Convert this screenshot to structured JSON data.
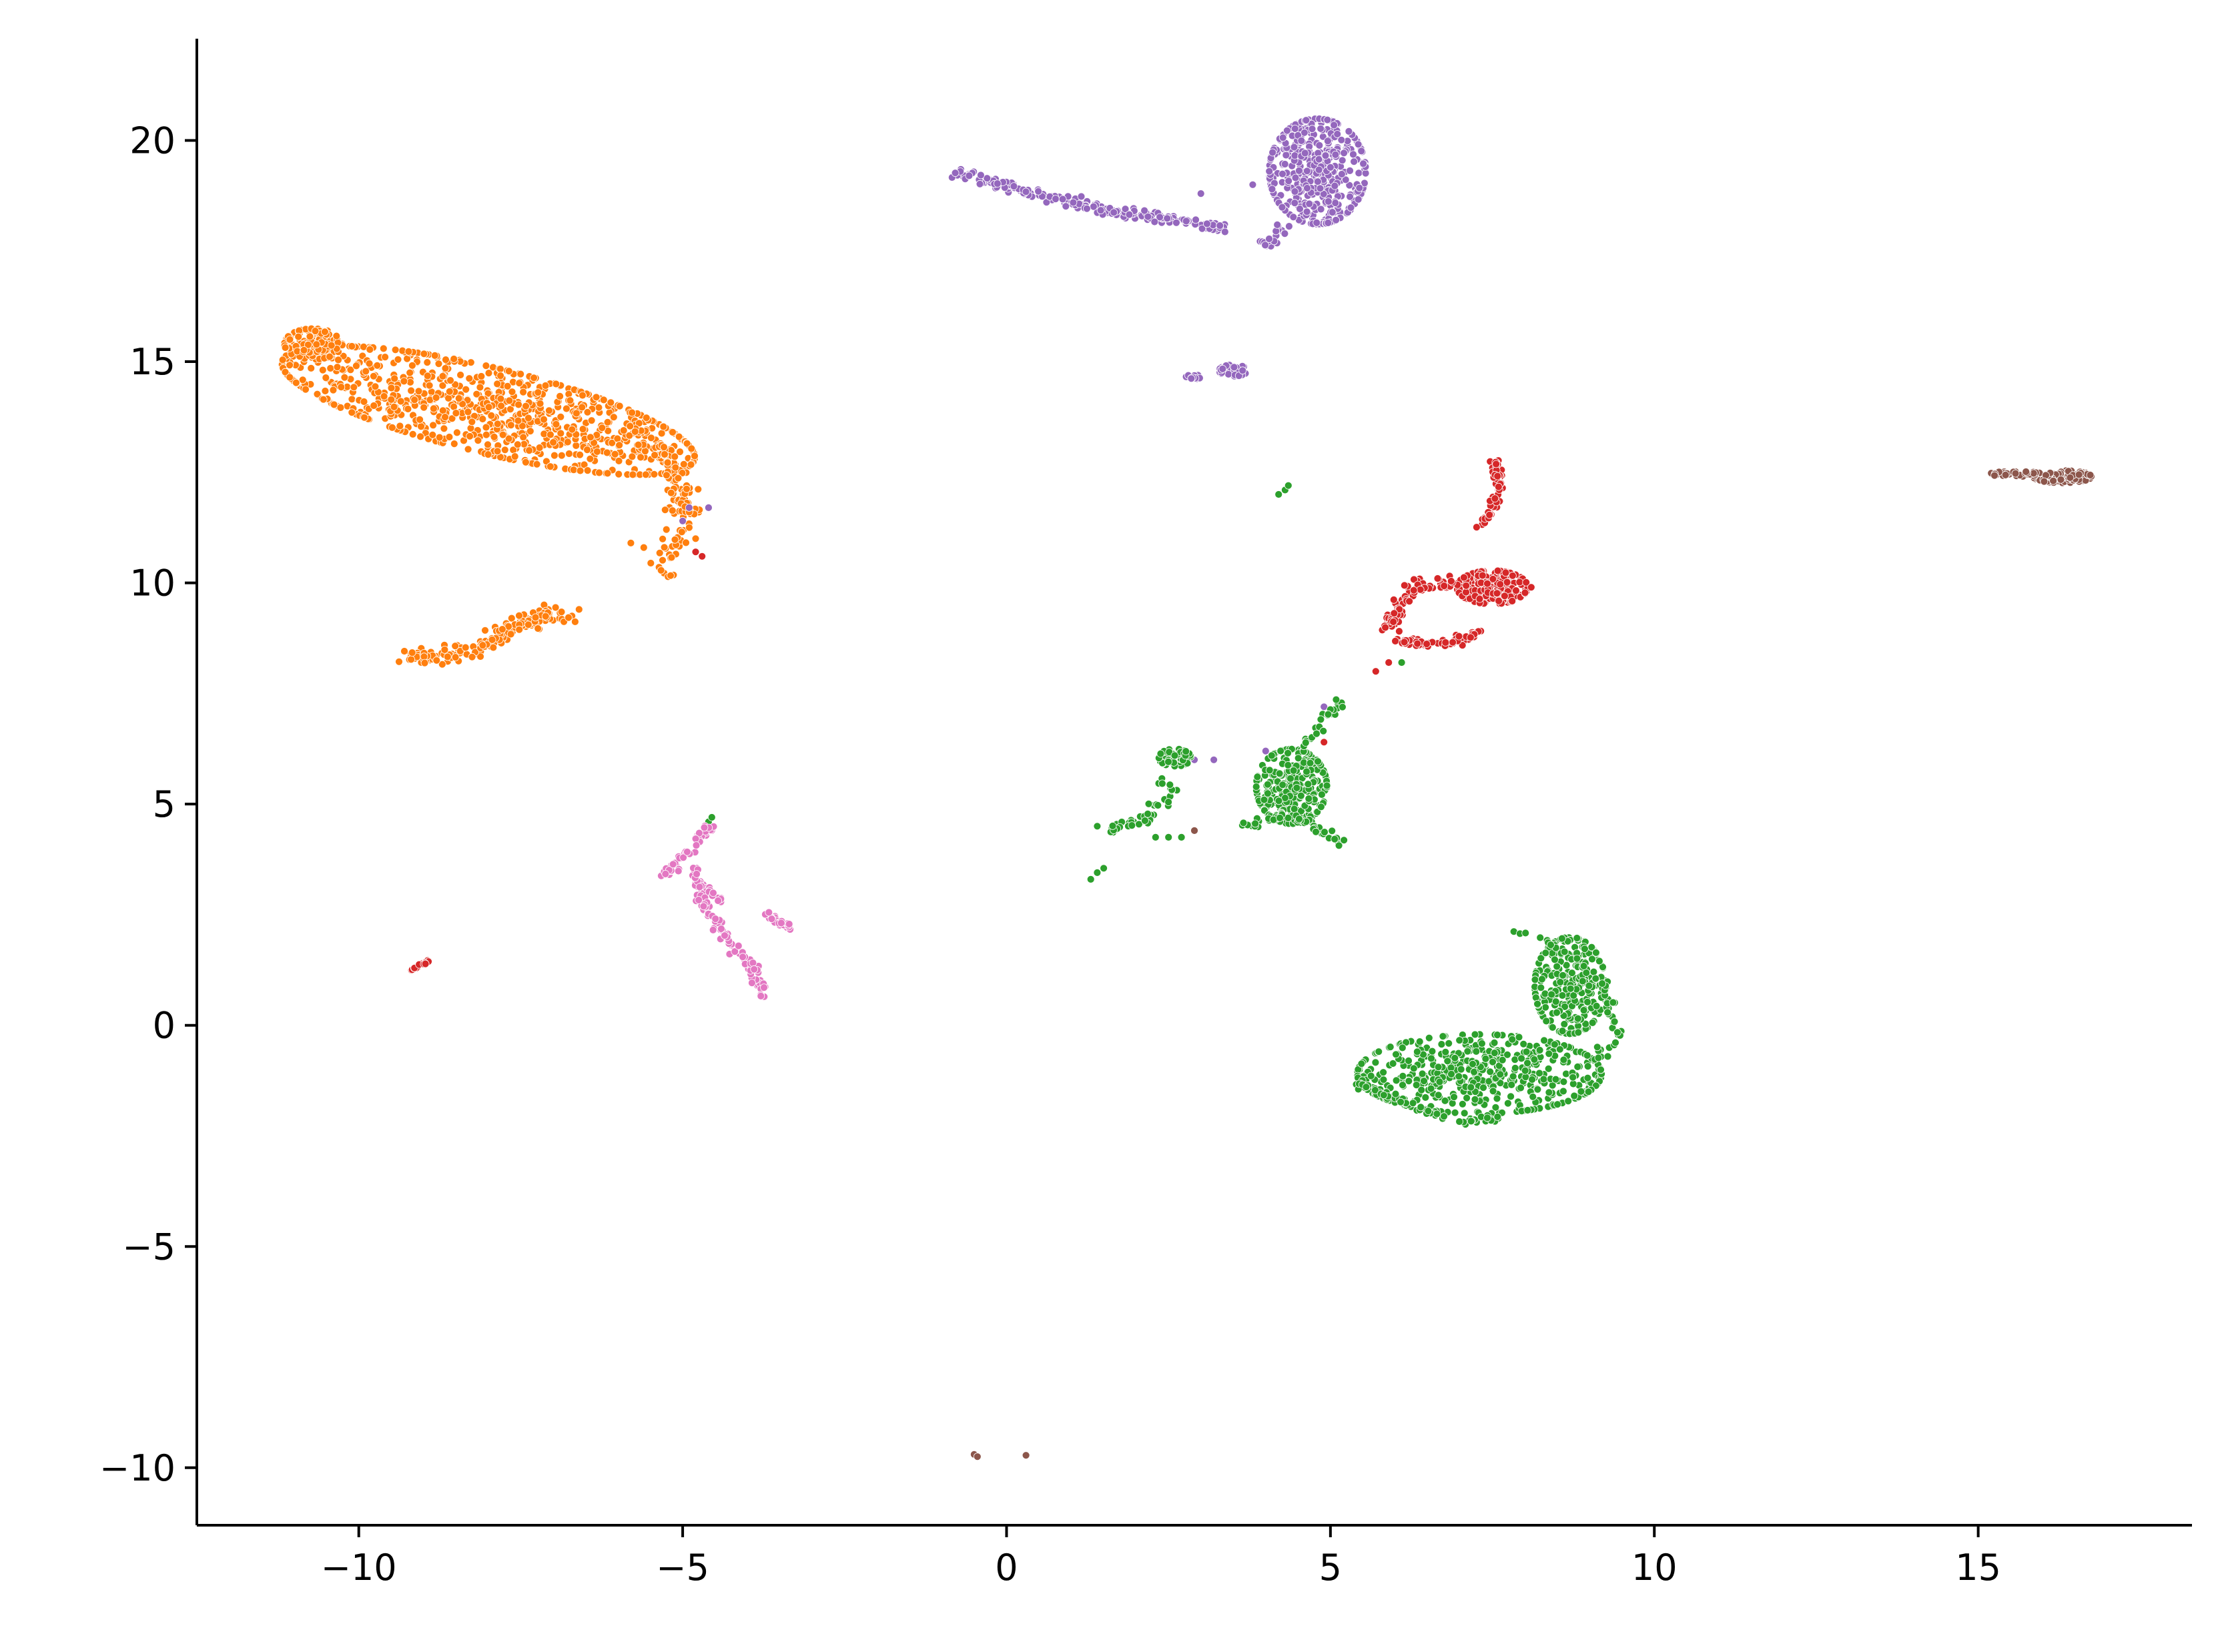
{
  "chart_data": {
    "type": "scatter",
    "title": "",
    "xlabel": "",
    "ylabel": "",
    "xlim": [
      -12.5,
      18.3
    ],
    "ylim": [
      -11.3,
      22.3
    ],
    "grid": false,
    "legend": "none",
    "xticks": [
      -10,
      -5,
      0,
      5,
      10,
      15
    ],
    "yticks": [
      -10,
      -5,
      0,
      5,
      10,
      15,
      20
    ],
    "xtick_labels": [
      "−10",
      "−5",
      "0",
      "5",
      "10",
      "15"
    ],
    "ytick_labels": [
      "−10",
      "−5",
      "0",
      "5",
      "10",
      "15",
      "20"
    ],
    "series": [
      {
        "color": "#ff7f0e",
        "clusters": [
          {
            "shape": "blob",
            "cx": -8.0,
            "cy": 13.9,
            "rx": 3.4,
            "ry": 0.95,
            "angle": -20,
            "n": 900
          },
          {
            "shape": "blob",
            "cx": -10.7,
            "cy": 15.4,
            "rx": 0.45,
            "ry": 0.35,
            "angle": 0,
            "n": 140
          },
          {
            "shape": "path",
            "points": [
              [
                -5.9,
                13.6
              ],
              [
                -5.3,
                12.9
              ],
              [
                -5.0,
                12.2
              ],
              [
                -5.0,
                11.3
              ],
              [
                -5.3,
                10.3
              ]
            ],
            "spread": 0.25,
            "n": 130
          },
          {
            "shape": "path",
            "points": [
              [
                -9.3,
                8.3
              ],
              [
                -8.4,
                8.4
              ],
              [
                -7.7,
                8.9
              ],
              [
                -7.2,
                9.3
              ],
              [
                -6.8,
                9.1
              ]
            ],
            "spread": 0.18,
            "n": 180
          },
          {
            "shape": "points",
            "points": [
              [
                -5.8,
                10.9
              ],
              [
                -5.6,
                10.8
              ],
              [
                -4.8,
                11.0
              ],
              [
                -6.6,
                9.4
              ],
              [
                -4.9,
                11.6
              ]
            ]
          }
        ]
      },
      {
        "color": "#9467bd",
        "clusters": [
          {
            "shape": "blob",
            "cx": 4.8,
            "cy": 19.3,
            "rx": 0.75,
            "ry": 1.2,
            "angle": 0,
            "n": 450
          },
          {
            "shape": "path",
            "points": [
              [
                -0.8,
                19.3
              ],
              [
                0.4,
                18.8
              ],
              [
                1.6,
                18.4
              ],
              [
                2.8,
                18.2
              ],
              [
                3.3,
                18.0
              ]
            ],
            "spread": 0.12,
            "n": 190
          },
          {
            "shape": "path",
            "points": [
              [
                3.9,
                17.6
              ],
              [
                4.3,
                18.1
              ]
            ],
            "spread": 0.15,
            "n": 20
          },
          {
            "shape": "blob",
            "cx": 3.5,
            "cy": 14.8,
            "rx": 0.22,
            "ry": 0.13,
            "angle": 0,
            "n": 35
          },
          {
            "shape": "blob",
            "cx": 2.9,
            "cy": 14.65,
            "rx": 0.13,
            "ry": 0.06,
            "angle": 0,
            "n": 12
          },
          {
            "shape": "points",
            "points": [
              [
                -4.6,
                11.7
              ],
              [
                -4.9,
                11.7
              ],
              [
                -5.0,
                11.4
              ],
              [
                2.9,
                6.0
              ],
              [
                3.2,
                6.0
              ],
              [
                4.9,
                7.2
              ],
              [
                4.0,
                6.2
              ],
              [
                3.8,
                19.0
              ],
              [
                3.0,
                18.8
              ]
            ]
          }
        ]
      },
      {
        "color": "#d62728",
        "clusters": [
          {
            "shape": "blob",
            "cx": 7.5,
            "cy": 9.9,
            "rx": 0.55,
            "ry": 0.38,
            "angle": 0,
            "n": 220
          },
          {
            "shape": "path",
            "points": [
              [
                5.9,
                9.0
              ],
              [
                6.3,
                9.9
              ],
              [
                6.9,
                10.0
              ]
            ],
            "spread": 0.15,
            "n": 80
          },
          {
            "shape": "path",
            "points": [
              [
                6.0,
                8.7
              ],
              [
                6.8,
                8.6
              ],
              [
                7.3,
                8.9
              ]
            ],
            "spread": 0.1,
            "n": 60
          },
          {
            "shape": "path",
            "points": [
              [
                7.3,
                11.2
              ],
              [
                7.6,
                12.0
              ],
              [
                7.55,
                12.8
              ]
            ],
            "spread": 0.07,
            "n": 60
          },
          {
            "shape": "path",
            "points": [
              [
                -9.2,
                1.25
              ],
              [
                -8.9,
                1.45
              ]
            ],
            "spread": 0.04,
            "n": 14
          },
          {
            "shape": "points",
            "points": [
              [
                4.9,
                6.4
              ],
              [
                -4.8,
                10.7
              ],
              [
                -4.7,
                10.6
              ],
              [
                5.7,
                8.0
              ],
              [
                5.9,
                8.2
              ],
              [
                8.1,
                9.9
              ]
            ]
          }
        ]
      },
      {
        "color": "#2ca02c",
        "clusters": [
          {
            "shape": "blob",
            "cx": 7.3,
            "cy": -1.1,
            "rx": 1.9,
            "ry": 0.9,
            "angle": 0,
            "n": 520
          },
          {
            "shape": "blob",
            "cx": 8.7,
            "cy": 0.9,
            "rx": 0.55,
            "ry": 1.1,
            "angle": 0,
            "n": 260
          },
          {
            "shape": "path",
            "points": [
              [
                7.8,
                2.2
              ],
              [
                8.6,
                1.7
              ],
              [
                9.2,
                1.0
              ],
              [
                9.4,
                -0.3
              ],
              [
                9.1,
                -0.8
              ]
            ],
            "spread": 0.12,
            "n": 60
          },
          {
            "shape": "path",
            "points": [
              [
                5.4,
                -1.3
              ],
              [
                6.2,
                -1.8
              ],
              [
                7.0,
                -2.2
              ],
              [
                7.6,
                -2.1
              ]
            ],
            "spread": 0.1,
            "n": 60
          },
          {
            "shape": "blob",
            "cx": 4.4,
            "cy": 5.4,
            "rx": 0.55,
            "ry": 0.85,
            "angle": 0,
            "n": 300
          },
          {
            "shape": "path",
            "points": [
              [
                3.6,
                4.5
              ],
              [
                4.4,
                4.8
              ],
              [
                4.8,
                4.4
              ],
              [
                5.2,
                4.1
              ]
            ],
            "spread": 0.12,
            "n": 50
          },
          {
            "shape": "path",
            "points": [
              [
                4.6,
                6.3
              ],
              [
                4.9,
                6.9
              ],
              [
                5.1,
                7.3
              ]
            ],
            "spread": 0.1,
            "n": 25
          },
          {
            "shape": "blob",
            "cx": 2.6,
            "cy": 6.05,
            "rx": 0.25,
            "ry": 0.2,
            "angle": 0,
            "n": 60
          },
          {
            "shape": "path",
            "points": [
              [
                2.4,
                5.5
              ],
              [
                2.6,
                5.3
              ],
              [
                2.2,
                4.7
              ],
              [
                1.6,
                4.4
              ]
            ],
            "spread": 0.12,
            "n": 45
          },
          {
            "shape": "points",
            "points": [
              [
                1.3,
                3.3
              ],
              [
                1.4,
                3.45
              ],
              [
                1.5,
                3.55
              ],
              [
                2.3,
                4.25
              ],
              [
                2.5,
                4.25
              ],
              [
                2.7,
                4.25
              ],
              [
                4.2,
                12.0
              ],
              [
                4.3,
                12.1
              ],
              [
                4.35,
                12.2
              ],
              [
                -4.6,
                4.6
              ],
              [
                -4.55,
                4.7
              ],
              [
                6.1,
                8.2
              ],
              [
                1.4,
                4.5
              ]
            ]
          }
        ]
      },
      {
        "color": "#8c564b",
        "clusters": [
          {
            "shape": "blob",
            "cx": 16.3,
            "cy": 12.4,
            "rx": 0.45,
            "ry": 0.14,
            "angle": 0,
            "n": 90
          },
          {
            "shape": "path",
            "points": [
              [
                15.2,
                12.45
              ],
              [
                15.9,
                12.5
              ]
            ],
            "spread": 0.06,
            "n": 30
          },
          {
            "shape": "points",
            "points": [
              [
                -0.5,
                -9.7
              ],
              [
                -0.45,
                -9.75
              ],
              [
                0.3,
                -9.72
              ],
              [
                2.9,
                4.4
              ]
            ]
          }
        ]
      },
      {
        "color": "#e377c2",
        "clusters": [
          {
            "shape": "path",
            "points": [
              [
                -5.3,
                3.4
              ],
              [
                -4.9,
                3.9
              ],
              [
                -4.6,
                4.5
              ]
            ],
            "spread": 0.08,
            "n": 50
          },
          {
            "shape": "path",
            "points": [
              [
                -4.8,
                3.7
              ],
              [
                -4.7,
                2.8
              ],
              [
                -4.3,
                2.0
              ],
              [
                -4.0,
                1.4
              ],
              [
                -3.7,
                0.6
              ]
            ],
            "spread": 0.09,
            "n": 110
          },
          {
            "shape": "path",
            "points": [
              [
                -3.7,
                2.5
              ],
              [
                -3.5,
                2.3
              ],
              [
                -3.3,
                2.2
              ]
            ],
            "spread": 0.07,
            "n": 30
          },
          {
            "shape": "path",
            "points": [
              [
                -4.6,
                3.1
              ],
              [
                -4.4,
                2.8
              ]
            ],
            "spread": 0.05,
            "n": 10
          }
        ]
      }
    ]
  }
}
